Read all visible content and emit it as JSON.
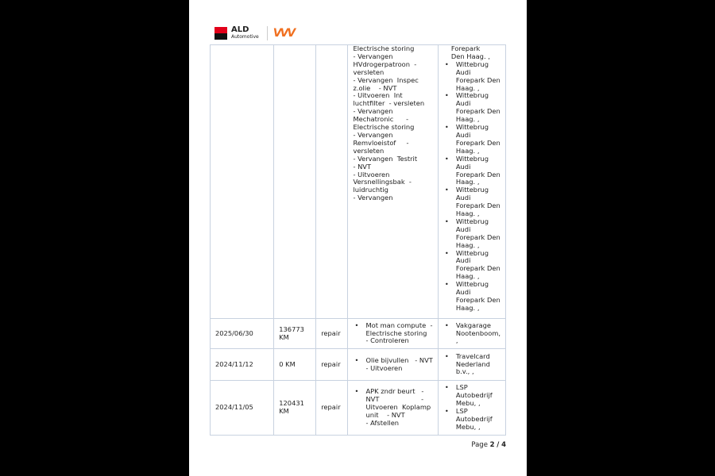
{
  "header": {
    "brand": "ALD",
    "brand_sub": "Automotive",
    "partner_logo": "LP"
  },
  "rows": [
    {
      "date": "",
      "km": "",
      "type": "",
      "desc": [
        "Electrische storing",
        "- Vervangen",
        "HVdrogerpatroon  -",
        "versleten",
        "- Vervangen  Inspec",
        "z.olie    - NVT",
        "- Uitvoeren  Int",
        "luchtfilter  - versleten",
        "- Vervangen",
        "Mechatronic      -",
        "Electrische storing",
        "- Vervangen",
        "Remvloeistof     -",
        "versleten",
        "- Vervangen  Testrit",
        "- NVT",
        "- Uitvoeren",
        "Versnellingsbak  -",
        "luidruchtig",
        "- Vervangen"
      ],
      "garage_lead": [
        "Forepark",
        "Den Haag. ,"
      ],
      "garages": [
        "Wittebrug Audi Forepark Den Haag. ,",
        "Wittebrug Audi Forepark Den Haag. ,",
        "Wittebrug Audi Forepark Den Haag. ,",
        "Wittebrug Audi Forepark Den Haag. ,",
        "Wittebrug Audi Forepark Den Haag. ,",
        "Wittebrug Audi Forepark Den Haag. ,",
        "Wittebrug Audi Forepark Den Haag. ,",
        "Wittebrug Audi Forepark Den Haag. ,"
      ]
    },
    {
      "date": "2025/06/30",
      "km": "136773 KM",
      "type": "repair",
      "desc": [
        "Mot man compute  -",
        "Electrische storing",
        "- Controleren"
      ],
      "garages": [
        "Vakgarage Nootenboom, ,"
      ]
    },
    {
      "date": "2024/11/12",
      "km": "0 KM",
      "type": "repair",
      "desc": [
        "Olie bijvullen   - NVT",
        "- Uitvoeren"
      ],
      "garages": [
        "Travelcard Nederland b.v., ,"
      ]
    },
    {
      "date": "2024/11/05",
      "km": "120431 KM",
      "type": "repair",
      "desc": [
        "APK zndr beurt   -",
        "NVT                    -",
        "Uitvoeren  Koplamp",
        "unit    - NVT",
        "- Afstellen"
      ],
      "garages": [
        "LSP Autobedrijf Mebu, ,",
        "LSP Autobedrijf Mebu, ,"
      ]
    }
  ],
  "footer": {
    "page_prefix": "Page",
    "page_current": "2",
    "page_sep": "/",
    "page_total": "4"
  }
}
